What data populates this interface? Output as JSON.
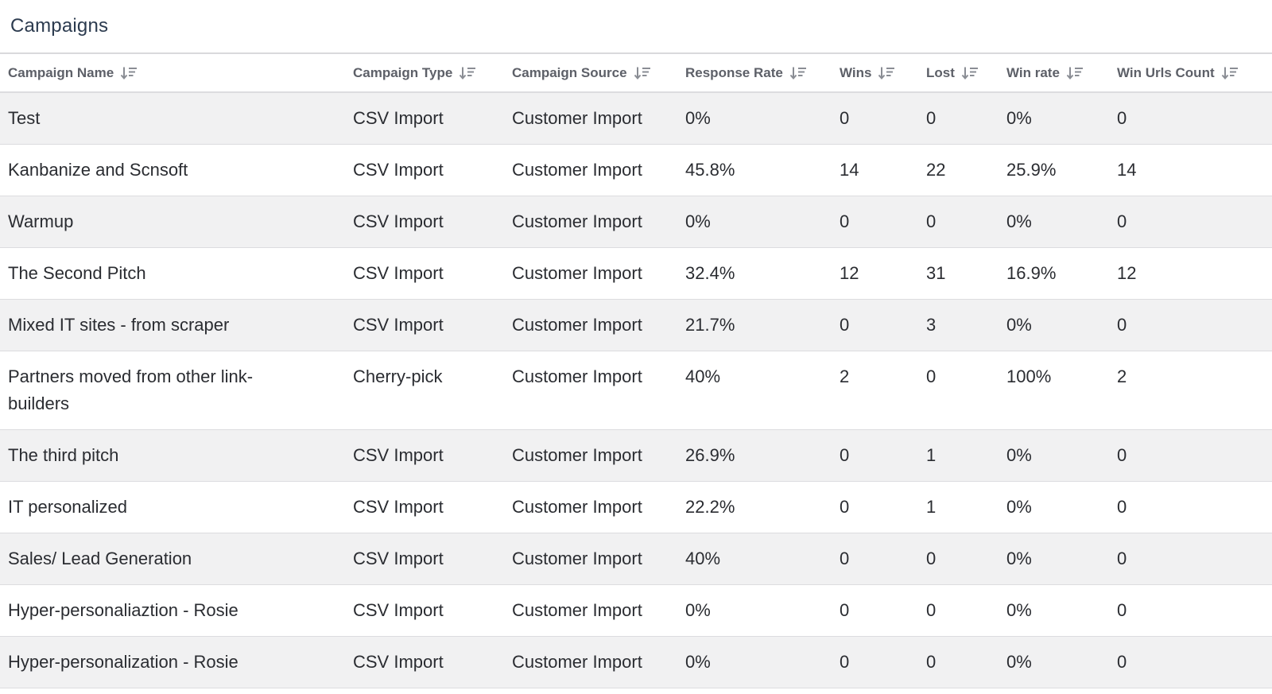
{
  "panel": {
    "title": "Campaigns"
  },
  "table": {
    "sort_icon": "sort-descending-icon",
    "columns": [
      {
        "key": "name",
        "label": "Campaign Name"
      },
      {
        "key": "type",
        "label": "Campaign Type"
      },
      {
        "key": "source",
        "label": "Campaign Source"
      },
      {
        "key": "response_rate",
        "label": "Response Rate"
      },
      {
        "key": "wins",
        "label": "Wins"
      },
      {
        "key": "lost",
        "label": "Lost"
      },
      {
        "key": "win_rate",
        "label": "Win rate"
      },
      {
        "key": "win_urls_count",
        "label": "Win Urls Count"
      }
    ],
    "rows": [
      {
        "name": "Test",
        "type": "CSV Import",
        "source": "Customer Import",
        "response_rate": "0%",
        "wins": "0",
        "lost": "0",
        "win_rate": "0%",
        "win_urls_count": "0"
      },
      {
        "name": "Kanbanize and Scnsoft",
        "type": "CSV Import",
        "source": "Customer Import",
        "response_rate": "45.8%",
        "wins": "14",
        "lost": "22",
        "win_rate": "25.9%",
        "win_urls_count": "14"
      },
      {
        "name": "Warmup",
        "type": "CSV Import",
        "source": "Customer Import",
        "response_rate": "0%",
        "wins": "0",
        "lost": "0",
        "win_rate": "0%",
        "win_urls_count": "0"
      },
      {
        "name": "The Second Pitch",
        "type": "CSV Import",
        "source": "Customer Import",
        "response_rate": "32.4%",
        "wins": "12",
        "lost": "31",
        "win_rate": "16.9%",
        "win_urls_count": "12"
      },
      {
        "name": "Mixed IT sites - from scraper",
        "type": "CSV Import",
        "source": "Customer Import",
        "response_rate": "21.7%",
        "wins": "0",
        "lost": "3",
        "win_rate": "0%",
        "win_urls_count": "0"
      },
      {
        "name": "Partners moved from other link-builders",
        "type": "Cherry-pick",
        "source": "Customer Import",
        "response_rate": "40%",
        "wins": "2",
        "lost": "0",
        "win_rate": "100%",
        "win_urls_count": "2"
      },
      {
        "name": "The third pitch",
        "type": "CSV Import",
        "source": "Customer Import",
        "response_rate": "26.9%",
        "wins": "0",
        "lost": "1",
        "win_rate": "0%",
        "win_urls_count": "0"
      },
      {
        "name": "IT personalized",
        "type": "CSV Import",
        "source": "Customer Import",
        "response_rate": "22.2%",
        "wins": "0",
        "lost": "1",
        "win_rate": "0%",
        "win_urls_count": "0"
      },
      {
        "name": "Sales/ Lead Generation",
        "type": "CSV Import",
        "source": "Customer Import",
        "response_rate": "40%",
        "wins": "0",
        "lost": "0",
        "win_rate": "0%",
        "win_urls_count": "0"
      },
      {
        "name": "Hyper-personaliaztion - Rosie",
        "type": "CSV Import",
        "source": "Customer Import",
        "response_rate": "0%",
        "wins": "0",
        "lost": "0",
        "win_rate": "0%",
        "win_urls_count": "0"
      },
      {
        "name": "Hyper-personalization - Rosie",
        "type": "CSV Import",
        "source": "Customer Import",
        "response_rate": "0%",
        "wins": "0",
        "lost": "0",
        "win_rate": "0%",
        "win_urls_count": "0"
      }
    ]
  }
}
